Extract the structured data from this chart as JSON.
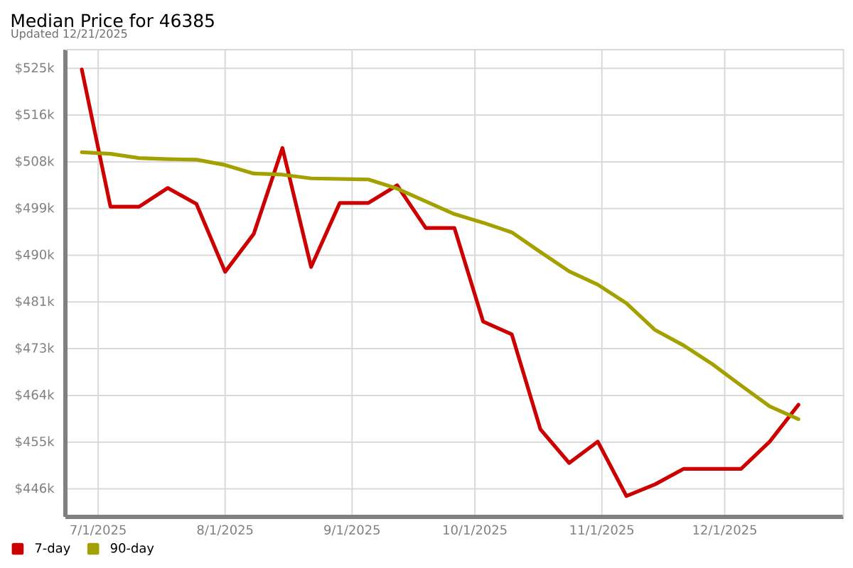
{
  "chart_data": {
    "type": "line",
    "title": "Median Price for 46385",
    "subtitle": "Updated 12/21/2025",
    "x": [
      "2025-06-27",
      "2025-07-04",
      "2025-07-11",
      "2025-07-18",
      "2025-07-25",
      "2025-08-01",
      "2025-08-08",
      "2025-08-15",
      "2025-08-22",
      "2025-08-29",
      "2025-09-05",
      "2025-09-12",
      "2025-09-19",
      "2025-09-26",
      "2025-10-03",
      "2025-10-10",
      "2025-10-17",
      "2025-10-24",
      "2025-10-31",
      "2025-11-07",
      "2025-11-14",
      "2025-11-21",
      "2025-11-28",
      "2025-12-05",
      "2025-12-12",
      "2025-12-19"
    ],
    "series": [
      {
        "name": "7-day",
        "color": "#cc0000",
        "values": [
          524800,
          499100,
          499100,
          502600,
          499600,
          486900,
          494000,
          510100,
          487800,
          499800,
          499800,
          503100,
          495100,
          495100,
          477600,
          475200,
          457400,
          451100,
          455100,
          444900,
          447100,
          450000,
          450000,
          450000,
          455100,
          462000
        ]
      },
      {
        "name": "90-day",
        "color": "#a3a000",
        "values": [
          509300,
          509000,
          508200,
          508000,
          507900,
          506900,
          505300,
          505100,
          504400,
          504300,
          504200,
          502500,
          500100,
          497700,
          496100,
          494300,
          490600,
          487000,
          484500,
          481000,
          476000,
          473100,
          469600,
          465600,
          461700,
          459300
        ]
      }
    ],
    "xlim": [
      "2025-06-23",
      "2025-12-30"
    ],
    "xticks": [
      {
        "value": "2025-07-01",
        "label": "7/1/2025"
      },
      {
        "value": "2025-08-01",
        "label": "8/1/2025"
      },
      {
        "value": "2025-09-01",
        "label": "9/1/2025"
      },
      {
        "value": "2025-10-01",
        "label": "10/1/2025"
      },
      {
        "value": "2025-11-01",
        "label": "11/1/2025"
      },
      {
        "value": "2025-12-01",
        "label": "12/1/2025"
      }
    ],
    "ylim": [
      441000,
      528500
    ],
    "yticks": [
      {
        "value": 446250,
        "label": "$446k"
      },
      {
        "value": 455000,
        "label": "$455k"
      },
      {
        "value": 463750,
        "label": "$464k"
      },
      {
        "value": 472500,
        "label": "$473k"
      },
      {
        "value": 481250,
        "label": "$481k"
      },
      {
        "value": 490000,
        "label": "$490k"
      },
      {
        "value": 498750,
        "label": "$499k"
      },
      {
        "value": 507500,
        "label": "$508k"
      },
      {
        "value": 516250,
        "label": "$516k"
      },
      {
        "value": 525000,
        "label": "$525k"
      }
    ],
    "grid": true,
    "legend": "bottom",
    "marker": "none",
    "line_style": "solid"
  }
}
